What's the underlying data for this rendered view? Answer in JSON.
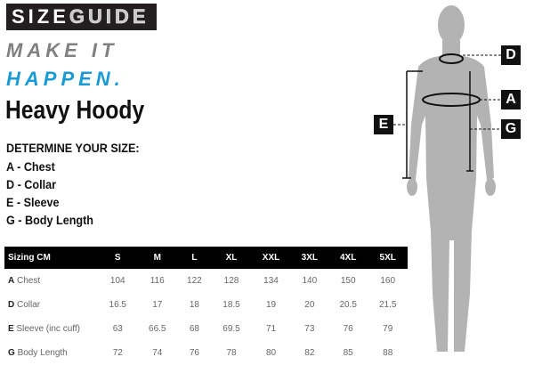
{
  "logo": {
    "part1": "SIZE",
    "part2": "GUIDE"
  },
  "tagline": {
    "line1": "MAKE IT",
    "line2": "HAPPEN.",
    "line1_color": "#808080",
    "line2_color": "#1a9ad6"
  },
  "title": "Heavy Hoody",
  "determine": {
    "heading": "DETERMINE YOUR SIZE:",
    "items": [
      "A - Chest",
      "D - Collar",
      "E - Sleeve",
      "G - Body Length"
    ]
  },
  "table": {
    "headers": [
      "Sizing CM",
      "S",
      "M",
      "L",
      "XL",
      "XXL",
      "3XL",
      "4XL",
      "5XL"
    ],
    "rows": [
      {
        "code": "A",
        "label": "Chest",
        "values": [
          "104",
          "116",
          "122",
          "128",
          "134",
          "140",
          "150",
          "160"
        ]
      },
      {
        "code": "D",
        "label": "Collar",
        "values": [
          "16.5",
          "17",
          "18",
          "18.5",
          "19",
          "20",
          "20.5",
          "21.5"
        ]
      },
      {
        "code": "E",
        "label": "Sleeve (inc cuff)",
        "values": [
          "63",
          "66.5",
          "68",
          "69.5",
          "71",
          "73",
          "76",
          "79"
        ]
      },
      {
        "code": "G",
        "label": "Body Length",
        "values": [
          "72",
          "74",
          "76",
          "78",
          "80",
          "82",
          "85",
          "88"
        ]
      }
    ]
  },
  "figure": {
    "labels": {
      "d": "D",
      "a": "A",
      "g": "G",
      "e": "E"
    },
    "body_color": "#b3b3b3"
  }
}
